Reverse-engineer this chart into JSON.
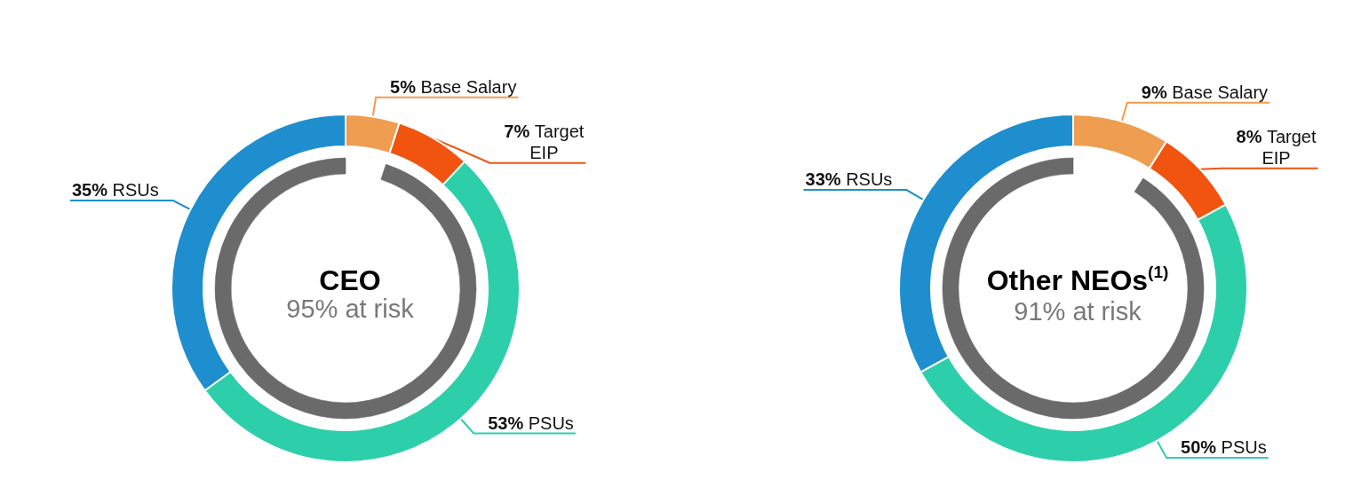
{
  "chart_data": [
    {
      "type": "donut",
      "title": "CEO",
      "subtitle": "95% at risk",
      "categories": [
        "Base Salary",
        "Target\nEIP",
        "PSUs",
        "RSUs"
      ],
      "series": [
        {
          "values": [
            5,
            7,
            53,
            35
          ],
          "colors": [
            "#ef9d50",
            "#f0540f",
            "#2dcfaa",
            "#1e8ece"
          ],
          "value_labels": [
            "5%",
            "7%",
            "53%",
            "35%"
          ]
        },
        {
          "values": [
            null,
            7.4,
            55.8,
            36.8
          ],
          "colors": [
            null,
            "#6a6a6a",
            "#6a6a6a",
            "#6a6a6a"
          ]
        }
      ]
    },
    {
      "type": "donut",
      "title": "Other NEOs$^{(1)}$",
      "subtitle": "91% at risk",
      "categories": [
        "Base Salary",
        "Target\nEIP",
        "PSUs",
        "RSUs"
      ],
      "series": [
        {
          "values": [
            9,
            8,
            50,
            33
          ],
          "colors": [
            "#ef9d50",
            "#f0540f",
            "#2dcfaa",
            "#1e8ece"
          ],
          "value_labels": [
            "9%",
            "8%",
            "50%",
            "33%"
          ]
        },
        {
          "values": [
            null,
            8.8,
            54.9,
            36.3
          ],
          "colors": [
            null,
            "#6a6a6a",
            "#6a6a6a",
            "#6a6a6a"
          ]
        }
      ]
    }
  ]
}
